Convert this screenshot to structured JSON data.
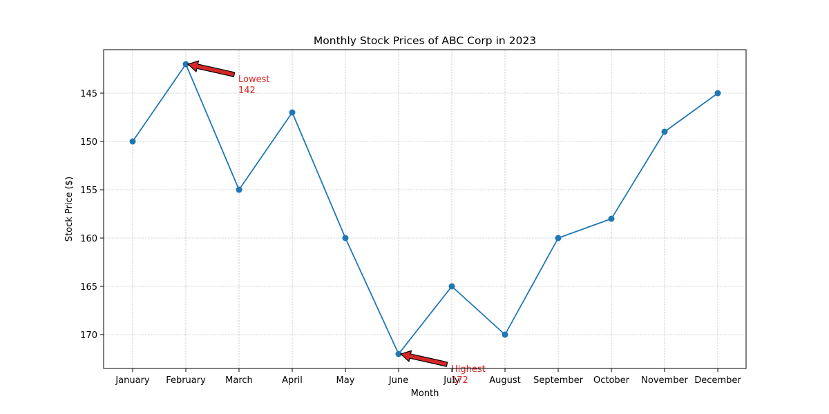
{
  "chart_data": {
    "type": "line",
    "title": "Monthly Stock Prices of ABC Corp in 2023",
    "xlabel": "Month",
    "ylabel": "Stock Price ($)",
    "categories": [
      "January",
      "February",
      "March",
      "April",
      "May",
      "June",
      "July",
      "August",
      "September",
      "October",
      "November",
      "December"
    ],
    "series": [
      {
        "values": [
          150,
          142,
          155,
          147,
          160,
          172,
          165,
          170,
          160,
          158,
          149,
          145
        ],
        "color": "#1f77b4"
      }
    ],
    "y_inverted": true,
    "ylim": [
      140.5,
      173.5
    ],
    "yticks": [
      145,
      150,
      155,
      160,
      165,
      170
    ],
    "grid": true,
    "annotations": [
      {
        "category": "February",
        "value": 142,
        "text_line1": "Lowest",
        "text_line2": "142",
        "color": "#d62728"
      },
      {
        "category": "June",
        "value": 172,
        "text_line1": "Highest",
        "text_line2": "172",
        "color": "#d62728"
      }
    ]
  }
}
